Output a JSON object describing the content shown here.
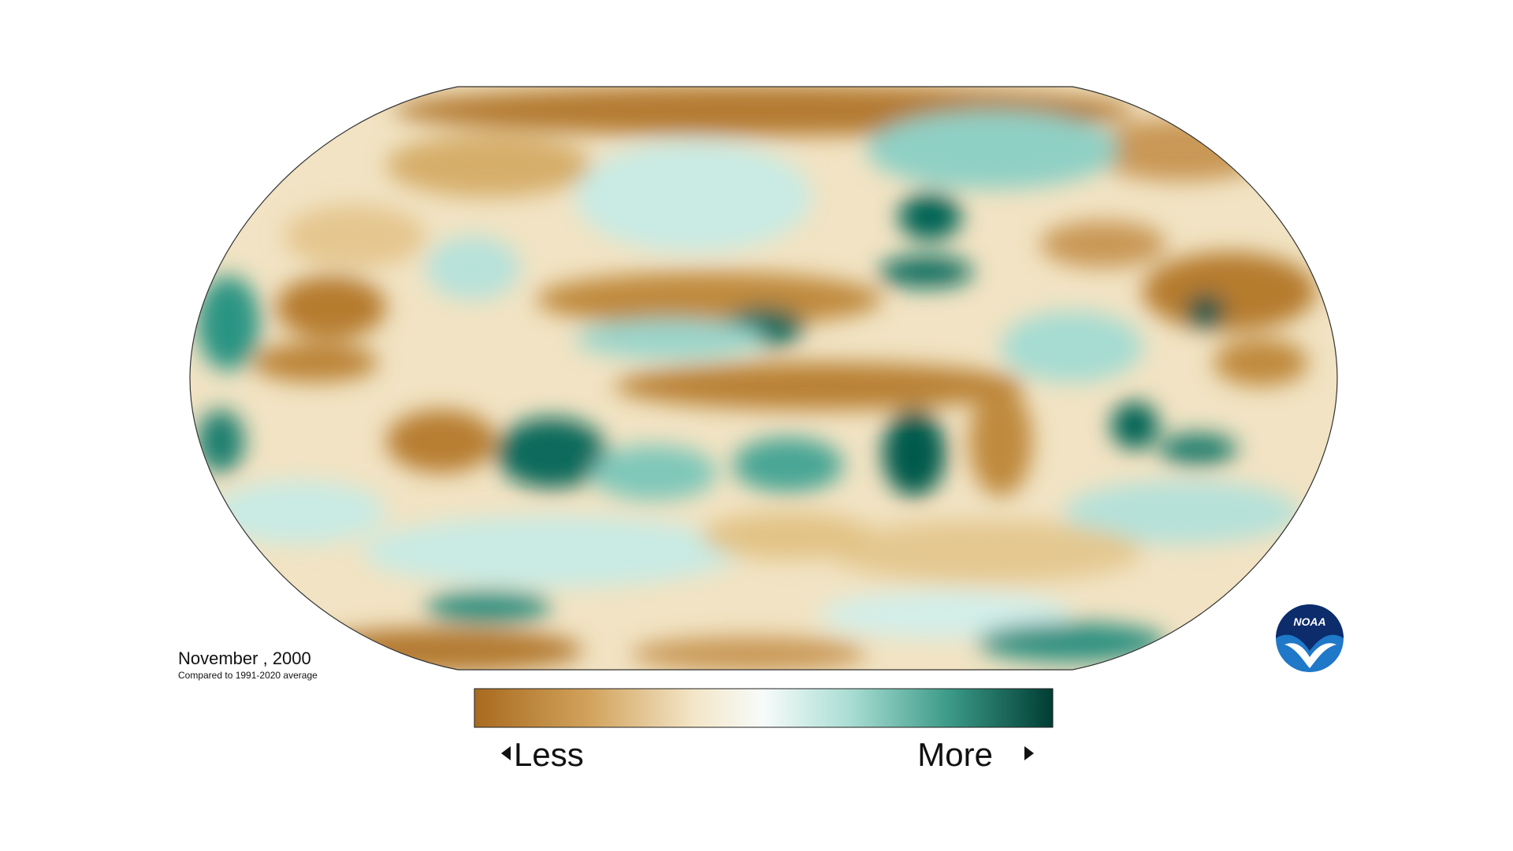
{
  "map": {
    "date": "November , 2000",
    "subtitle": "Compared to 1991-2020 average"
  },
  "legend": {
    "low_label": "Less",
    "high_label": "More"
  },
  "logo": "NOAA"
}
